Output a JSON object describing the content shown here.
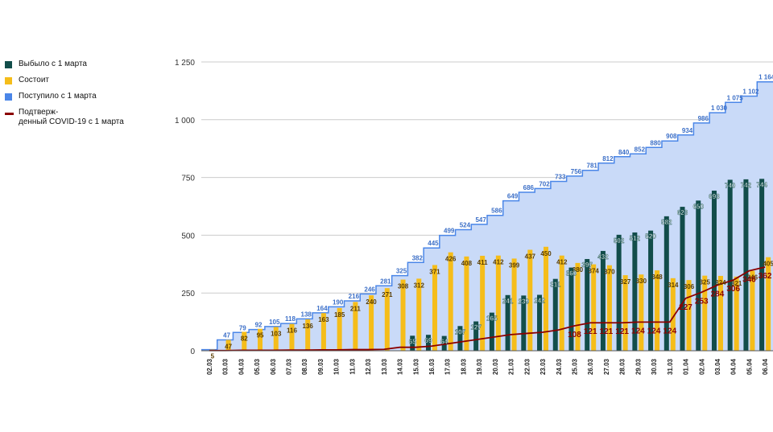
{
  "legend": {
    "items": [
      {
        "label": "Выбыло с 1 марта",
        "color": "#124d4a"
      },
      {
        "label": "Состоит",
        "color": "#f5bd1a"
      },
      {
        "label": "Поступило с 1 марта",
        "color": "#4a86e8"
      },
      {
        "label": "Подтверж-\nденный COVID-19 с 1 марта",
        "color": "#8b0000"
      }
    ]
  },
  "chart_data": {
    "type": "bar",
    "title": "",
    "xlabel": "",
    "ylabel": "",
    "ylim": [
      0,
      1250
    ],
    "yticks": [
      0,
      250,
      500,
      750,
      1000,
      1250
    ],
    "ytick_labels": [
      "0",
      "250",
      "500",
      "750",
      "1 000",
      "1 250"
    ],
    "grid": true,
    "legend_position": "left",
    "categories": [
      "02.03",
      "03.03",
      "04.03",
      "05.03",
      "06.03",
      "07.03",
      "08.03",
      "09.03",
      "10.03",
      "11.03",
      "12.03",
      "13.03",
      "14.03",
      "15.03",
      "16.03",
      "17.03",
      "18.03",
      "19.03",
      "20.03",
      "21.03",
      "22.03",
      "23.03",
      "24.03",
      "25.03",
      "26.03",
      "27.03",
      "28.03",
      "29.03",
      "30.03",
      "31.03",
      "01.04",
      "02.04",
      "03.04",
      "04.04",
      "05.04",
      "06.04"
    ],
    "series": [
      {
        "name": "Выбыло с 1 марта",
        "kind": "bar",
        "color": "#124d4a",
        "values": [
          0,
          0,
          0,
          0,
          0,
          0,
          0,
          0,
          0,
          0,
          0,
          0,
          0,
          65,
          69,
          64,
          107,
          127,
          165,
          241,
          239,
          242,
          311,
          360,
          397,
          432,
          502,
          512,
          520,
          582,
          623,
          650,
          693,
          740,
          742,
          744
        ],
        "labels": [
          "",
          "",
          "",
          "",
          "",
          "",
          "",
          "",
          "",
          "",
          "",
          "",
          "",
          "65",
          "69",
          "64",
          "107",
          "127",
          "165",
          "241",
          "239",
          "242",
          "311",
          "360",
          "397",
          "432",
          "502",
          "512",
          "520",
          "582",
          "623",
          "650",
          "693",
          "740",
          "742",
          "744"
        ]
      },
      {
        "name": "Состоит",
        "kind": "bar",
        "color": "#f5bd1a",
        "values": [
          5,
          47,
          82,
          95,
          103,
          116,
          136,
          163,
          185,
          211,
          240,
          271,
          308,
          312,
          371,
          426,
          408,
          411,
          412,
          399,
          437,
          450,
          412,
          380,
          374,
          370,
          327,
          330,
          348,
          314,
          306,
          325,
          324,
          321,
          346,
          405
        ],
        "labels": [
          "5",
          "47",
          "82",
          "95",
          "103",
          "116",
          "136",
          "163",
          "185",
          "211",
          "240",
          "271",
          "308",
          "312",
          "371",
          "426",
          "408",
          "411",
          "412",
          "399",
          "437",
          "450",
          "412",
          "380",
          "374",
          "370",
          "327",
          "330",
          "348",
          "314",
          "306",
          "325",
          "324",
          "321",
          "346",
          "405"
        ]
      },
      {
        "name": "Поступило с 1 марта",
        "kind": "area",
        "color": "#4a86e8",
        "fill": "#c9daf8",
        "values": [
          5,
          47,
          79,
          92,
          105,
          118,
          138,
          164,
          190,
          216,
          246,
          281,
          325,
          382,
          445,
          499,
          524,
          547,
          586,
          649,
          686,
          702,
          733,
          756,
          781,
          812,
          840,
          852,
          880,
          908,
          934,
          986,
          1030,
          1075,
          1102,
          1164
        ],
        "labels": [
          "",
          "47",
          "79",
          "92",
          "105",
          "118",
          "138",
          "164",
          "190",
          "216",
          "246",
          "281",
          "325",
          "382",
          "445",
          "499",
          "524",
          "547",
          "586",
          "649",
          "686",
          "702",
          "733",
          "756",
          "781",
          "812",
          "840",
          "852",
          "880",
          "908",
          "934",
          "986",
          "1 030",
          "1 075",
          "1 102",
          "1 164"
        ]
      },
      {
        "name": "Подтверж-денный COVID-19 с 1 марта",
        "kind": "line",
        "color": "#8b0000",
        "values": [
          1,
          1,
          2,
          2,
          2,
          3,
          3,
          4,
          4,
          5,
          5,
          6,
          15,
          15,
          20,
          30,
          40,
          50,
          60,
          70,
          75,
          80,
          90,
          108,
          121,
          121,
          121,
          124,
          124,
          124,
          227,
          253,
          284,
          306,
          346,
          362
        ],
        "labels": [
          "",
          "",
          "",
          "",
          "",
          "",
          "",
          "",
          "",
          "",
          "",
          "",
          "",
          "",
          "",
          "",
          "",
          "",
          "",
          "",
          "",
          "",
          "",
          "108",
          "121",
          "121",
          "121",
          "124",
          "124",
          "124",
          "227",
          "253",
          "284",
          "306",
          "346",
          "362"
        ]
      }
    ]
  }
}
